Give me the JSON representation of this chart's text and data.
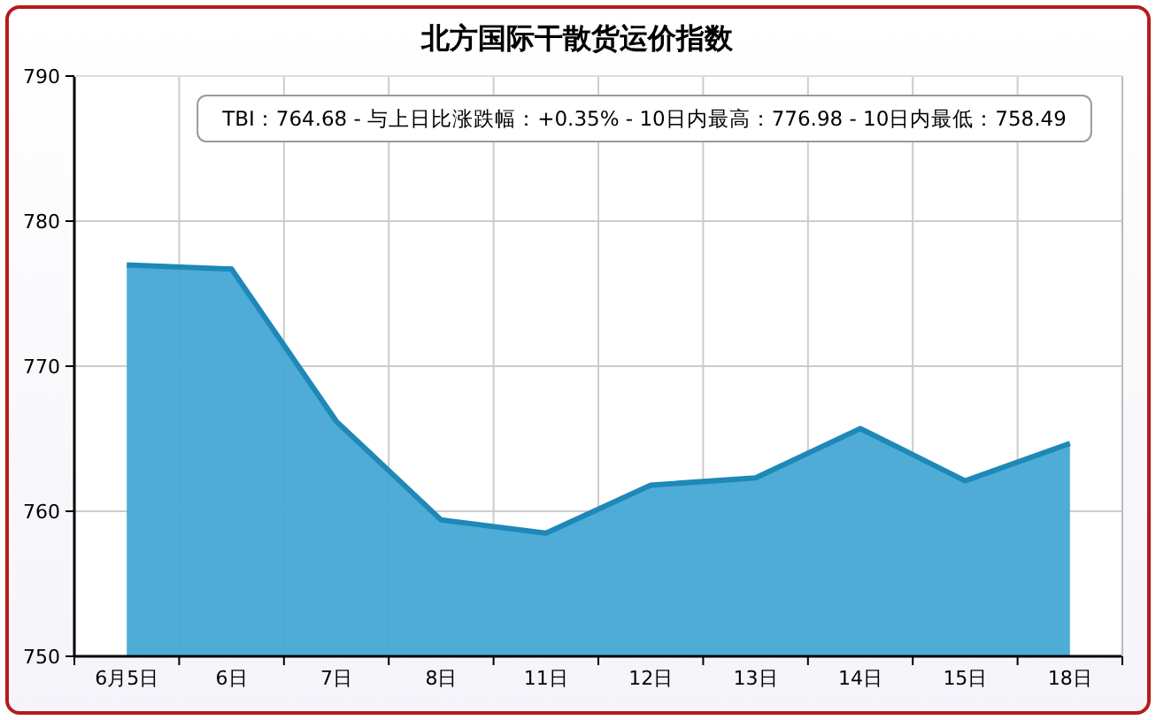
{
  "chart_data": {
    "type": "area",
    "title": "北方国际干散货运价指数",
    "annotations": [
      "TBI：764.68 - 与上日比涨跌幅：+0.35% - 10日内最高：776.98 - 10日内最低：758.49"
    ],
    "categories": [
      "6月5日",
      "6日",
      "7日",
      "8日",
      "11日",
      "12日",
      "13日",
      "14日",
      "15日",
      "18日"
    ],
    "series": [
      {
        "color": "#45a8d4",
        "values": [
          776.98,
          776.7,
          766.2,
          759.4,
          758.49,
          761.8,
          762.3,
          765.7,
          762.1,
          764.68
        ]
      }
    ],
    "ylim": [
      750,
      790
    ],
    "yticks": [
      750,
      760,
      770,
      780,
      790
    ],
    "grid": true
  }
}
